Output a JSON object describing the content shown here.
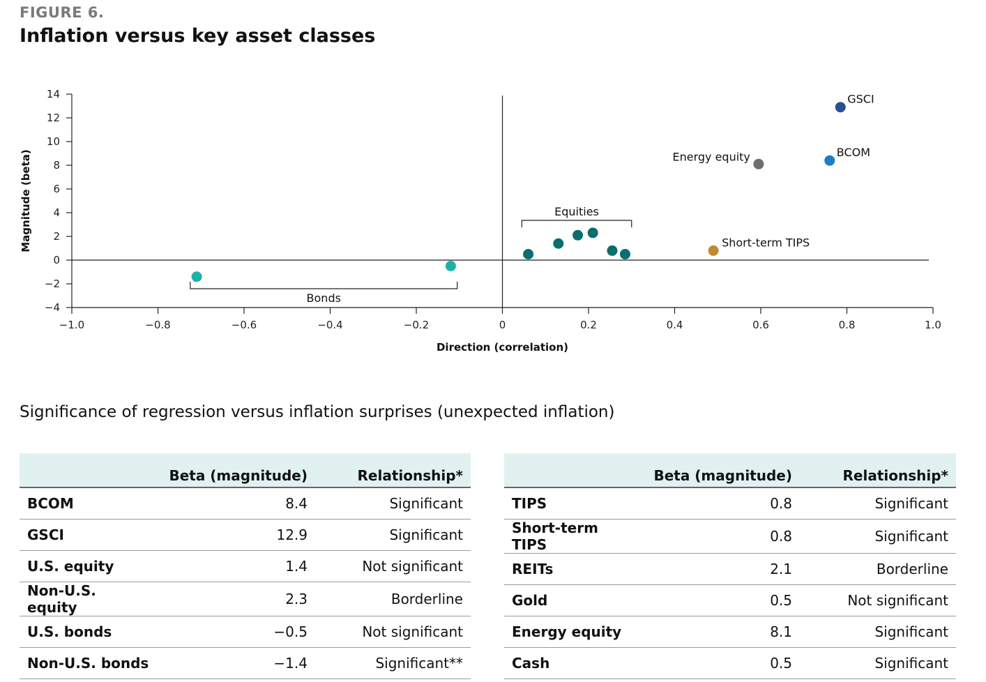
{
  "figure": {
    "label": "FIGURE 6.",
    "title": "Inflation versus key asset classes"
  },
  "chart_data": {
    "type": "scatter",
    "xlabel": "Direction (correlation)",
    "ylabel": "Magnitude (beta)",
    "xlim": [
      -1.0,
      1.0
    ],
    "ylim": [
      -4,
      14
    ],
    "xticks": [
      -1.0,
      -0.8,
      -0.6,
      -0.4,
      -0.2,
      0,
      0.2,
      0.4,
      0.6,
      0.8,
      1.0
    ],
    "xtick_labels": [
      "−1.0",
      "−0.8",
      "−0.6",
      "−0.4",
      "−0.2",
      "0",
      "0.2",
      "0.4",
      "0.6",
      "0.8",
      "1.0"
    ],
    "yticks": [
      -4,
      -2,
      0,
      2,
      4,
      6,
      8,
      10,
      12,
      14
    ],
    "ytick_labels": [
      "−4",
      "−2",
      "0",
      "2",
      "4",
      "6",
      "8",
      "10",
      "12",
      "14"
    ],
    "grid": false,
    "points": [
      {
        "x": -0.71,
        "y": -1.4,
        "color": "#1fb1a5",
        "label": ""
      },
      {
        "x": -0.12,
        "y": -0.5,
        "color": "#1fb1a5",
        "label": ""
      },
      {
        "x": 0.06,
        "y": 0.5,
        "color": "#0b6e6e",
        "label": ""
      },
      {
        "x": 0.13,
        "y": 1.4,
        "color": "#0b6e6e",
        "label": ""
      },
      {
        "x": 0.175,
        "y": 2.1,
        "color": "#0b6e6e",
        "label": ""
      },
      {
        "x": 0.21,
        "y": 2.3,
        "color": "#0b6e6e",
        "label": ""
      },
      {
        "x": 0.255,
        "y": 0.8,
        "color": "#0b6e6e",
        "label": ""
      },
      {
        "x": 0.285,
        "y": 0.5,
        "color": "#0b6e6e",
        "label": ""
      },
      {
        "x": 0.49,
        "y": 0.8,
        "color": "#c08a35",
        "label": "Short-term TIPS"
      },
      {
        "x": 0.595,
        "y": 8.1,
        "color": "#6e6e73",
        "label": "Energy equity"
      },
      {
        "x": 0.76,
        "y": 8.4,
        "color": "#1a7fc3",
        "label": "BCOM"
      },
      {
        "x": 0.785,
        "y": 12.9,
        "color": "#2b4f93",
        "label": "GSCI"
      }
    ],
    "groups": [
      {
        "label": "Equities",
        "x_start": 0.045,
        "x_end": 0.3
      },
      {
        "label": "Bonds",
        "x_start": -0.725,
        "x_end": -0.105
      }
    ]
  },
  "subtitle": "Significance of regression versus inflation surprises (unexpected inflation)",
  "tables": {
    "left": {
      "headers": [
        "",
        "Beta (magnitude)",
        "Relationship*"
      ],
      "rows": [
        [
          "BCOM",
          "8.4",
          "Significant"
        ],
        [
          "GSCI",
          "12.9",
          "Significant"
        ],
        [
          "U.S. equity",
          "1.4",
          "Not significant"
        ],
        [
          "Non-U.S. equity",
          "2.3",
          "Borderline"
        ],
        [
          "U.S. bonds",
          "−0.5",
          "Not significant"
        ],
        [
          "Non-U.S. bonds",
          "−1.4",
          "Significant**"
        ]
      ]
    },
    "right": {
      "headers": [
        "",
        "Beta (magnitude)",
        "Relationship*"
      ],
      "rows": [
        [
          "TIPS",
          "0.8",
          "Significant"
        ],
        [
          "Short-term TIPS",
          "0.8",
          "Significant"
        ],
        [
          "REITs",
          "2.1",
          "Borderline"
        ],
        [
          "Gold",
          "0.5",
          "Not significant"
        ],
        [
          "Energy equity",
          "8.1",
          "Significant"
        ],
        [
          "Cash",
          "0.5",
          "Significant"
        ]
      ]
    }
  }
}
